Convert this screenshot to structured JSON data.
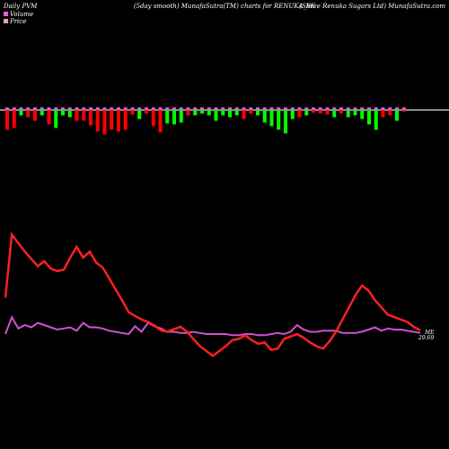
{
  "header": {
    "left": "Daily PVM",
    "center": "(5day smooth) MunafaSutra(TM) charts for RENUKA_BE",
    "right": "(Shree   Renuka  Sugars Ltd) MunafaSutra.com"
  },
  "legend": {
    "volume_label": "Volume",
    "price_label": "Price",
    "volume_color": "#e060e0",
    "price_color": "#ffa0a0"
  },
  "end_labels": {
    "top": "ME",
    "bottom": "29.69"
  },
  "colors": {
    "background": "#000000",
    "volume_up": "#00ff00",
    "volume_down": "#ff0000",
    "volume_cap": "#e060e0",
    "price_line": "#ff2020",
    "volume_line": "#d050d0",
    "baseline": "#ffffff"
  },
  "chart_data": {
    "type": "line",
    "volume_bars": [
      {
        "v": 22,
        "d": "down"
      },
      {
        "v": 20,
        "d": "down"
      },
      {
        "v": 6,
        "d": "up"
      },
      {
        "v": 8,
        "d": "down"
      },
      {
        "v": 12,
        "d": "down"
      },
      {
        "v": 6,
        "d": "up"
      },
      {
        "v": 16,
        "d": "down"
      },
      {
        "v": 20,
        "d": "up"
      },
      {
        "v": 6,
        "d": "up"
      },
      {
        "v": 8,
        "d": "up"
      },
      {
        "v": 12,
        "d": "down"
      },
      {
        "v": 12,
        "d": "down"
      },
      {
        "v": 17,
        "d": "down"
      },
      {
        "v": 24,
        "d": "down"
      },
      {
        "v": 27,
        "d": "down"
      },
      {
        "v": 22,
        "d": "down"
      },
      {
        "v": 24,
        "d": "down"
      },
      {
        "v": 22,
        "d": "down"
      },
      {
        "v": 5,
        "d": "down"
      },
      {
        "v": 10,
        "d": "up"
      },
      {
        "v": 4,
        "d": "down"
      },
      {
        "v": 18,
        "d": "down"
      },
      {
        "v": 25,
        "d": "down"
      },
      {
        "v": 15,
        "d": "up"
      },
      {
        "v": 16,
        "d": "up"
      },
      {
        "v": 14,
        "d": "up"
      },
      {
        "v": 6,
        "d": "down"
      },
      {
        "v": 6,
        "d": "up"
      },
      {
        "v": 4,
        "d": "up"
      },
      {
        "v": 6,
        "d": "up"
      },
      {
        "v": 12,
        "d": "up"
      },
      {
        "v": 6,
        "d": "up"
      },
      {
        "v": 8,
        "d": "up"
      },
      {
        "v": 6,
        "d": "up"
      },
      {
        "v": 10,
        "d": "down"
      },
      {
        "v": 4,
        "d": "down"
      },
      {
        "v": 6,
        "d": "up"
      },
      {
        "v": 14,
        "d": "up"
      },
      {
        "v": 18,
        "d": "up"
      },
      {
        "v": 22,
        "d": "up"
      },
      {
        "v": 26,
        "d": "up"
      },
      {
        "v": 10,
        "d": "up"
      },
      {
        "v": 8,
        "d": "down"
      },
      {
        "v": 6,
        "d": "up"
      },
      {
        "v": 3,
        "d": "down"
      },
      {
        "v": 4,
        "d": "down"
      },
      {
        "v": 5,
        "d": "down"
      },
      {
        "v": 8,
        "d": "up"
      },
      {
        "v": 4,
        "d": "down"
      },
      {
        "v": 8,
        "d": "up"
      },
      {
        "v": 6,
        "d": "up"
      },
      {
        "v": 10,
        "d": "up"
      },
      {
        "v": 16,
        "d": "up"
      },
      {
        "v": 22,
        "d": "up"
      },
      {
        "v": 8,
        "d": "down"
      },
      {
        "v": 6,
        "d": "down"
      },
      {
        "v": 12,
        "d": "up"
      },
      {
        "v": 2,
        "d": "down"
      }
    ],
    "price_series": [
      30,
      82,
      75,
      68,
      62,
      56,
      60,
      54,
      52,
      53,
      63,
      72,
      63,
      68,
      59,
      55,
      46,
      37,
      28,
      18,
      15,
      12,
      10,
      7,
      3,
      2,
      4,
      6,
      2,
      -4,
      -10,
      -14,
      -18,
      -14,
      -10,
      -5,
      -4,
      -1,
      -5,
      -8,
      -7,
      -13,
      -12,
      -4,
      -2,
      0,
      -3,
      -7,
      -10,
      -12,
      -6,
      2,
      12,
      22,
      32,
      40,
      36,
      28,
      22,
      16,
      14,
      12,
      10,
      6,
      3
    ],
    "price_x": [
      6,
      14,
      20,
      26,
      32,
      38,
      44,
      50,
      56,
      62,
      68,
      80,
      90,
      96,
      102,
      108,
      114,
      120,
      126,
      132,
      138,
      144,
      150,
      156,
      162,
      168,
      174,
      180,
      186,
      192,
      198,
      204,
      210,
      216,
      222,
      228,
      234,
      240,
      246,
      252,
      258,
      264,
      270,
      276,
      282,
      288,
      294,
      300,
      306,
      312,
      318,
      324,
      330,
      336,
      342,
      348,
      354,
      360,
      366,
      372,
      378,
      384,
      390,
      396,
      402
    ],
    "volume_series": [
      30,
      45,
      35,
      38,
      36,
      40,
      38,
      36,
      34,
      35,
      36,
      33,
      40,
      36,
      36,
      35,
      33,
      32,
      31,
      30,
      37,
      32,
      40,
      37,
      35,
      32,
      32,
      31,
      31,
      32,
      31,
      30,
      30,
      30,
      30,
      29,
      29,
      30,
      30,
      29,
      29,
      30,
      31,
      30,
      32,
      38,
      34,
      32,
      32,
      33,
      33,
      33,
      31,
      31,
      31,
      32,
      34,
      36,
      33,
      35,
      34,
      34,
      33,
      32,
      31
    ],
    "xlabel": "",
    "ylabel": ""
  }
}
